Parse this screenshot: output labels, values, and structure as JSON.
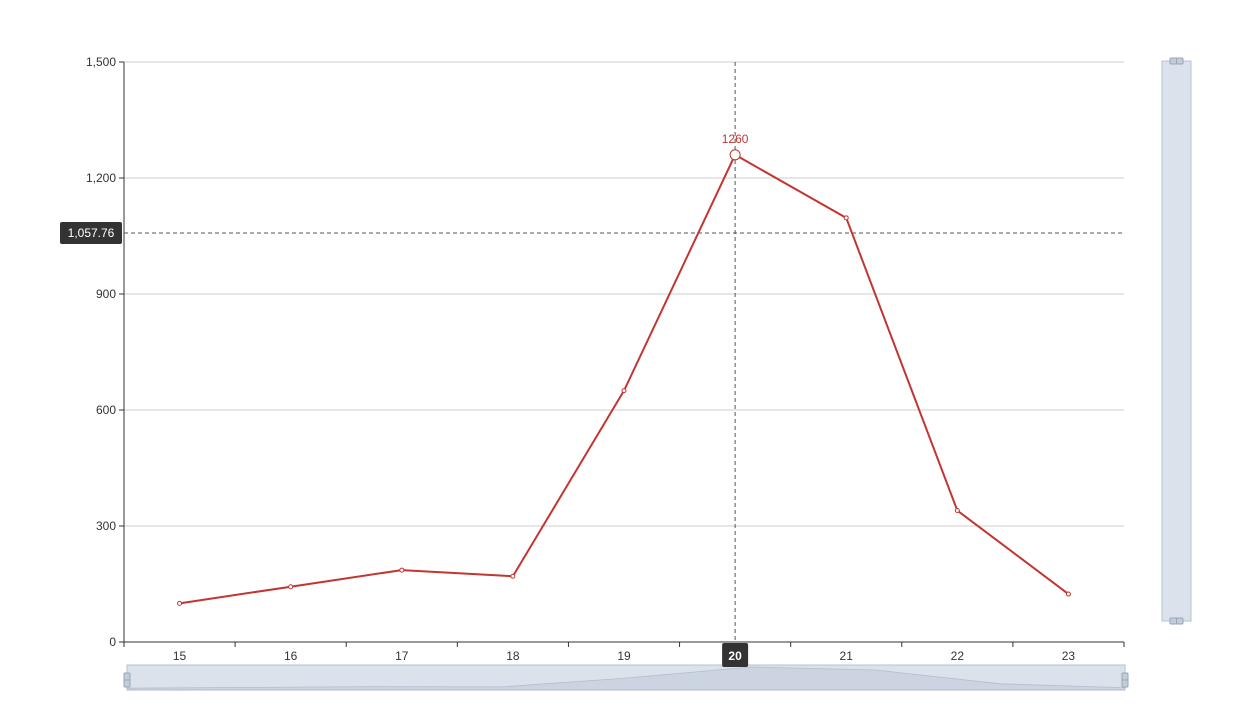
{
  "chart_data": {
    "type": "line",
    "categories": [
      "15",
      "16",
      "17",
      "18",
      "19",
      "20",
      "21",
      "22",
      "23"
    ],
    "series": [
      {
        "values": [
          100,
          143,
          186,
          170,
          650,
          1260,
          1097,
          340,
          124
        ]
      }
    ],
    "ylim": [
      0,
      1500
    ],
    "y_ticks": [
      0,
      300,
      600,
      900,
      1200,
      1500
    ],
    "y_tick_labels": [
      "0",
      "300",
      "600",
      "900",
      "1,200",
      "1,500"
    ],
    "grid": true,
    "colors": {
      "line": "#c23531",
      "axis": "#333333",
      "grid": "#cccccc",
      "zoom_fill": "#dbe2ec",
      "zoom_border": "#b6c2d3",
      "tooltip_bg": "#333333"
    },
    "highlighted_category": "20",
    "highlight_label": "1260",
    "crosshair_y_value": 1057.76,
    "crosshair_y_label": "1,057.76",
    "x_pointer_label": "20",
    "data_zoom": {
      "x_range_fraction": [
        0,
        1
      ],
      "y_range_fraction": [
        0,
        1
      ]
    }
  }
}
